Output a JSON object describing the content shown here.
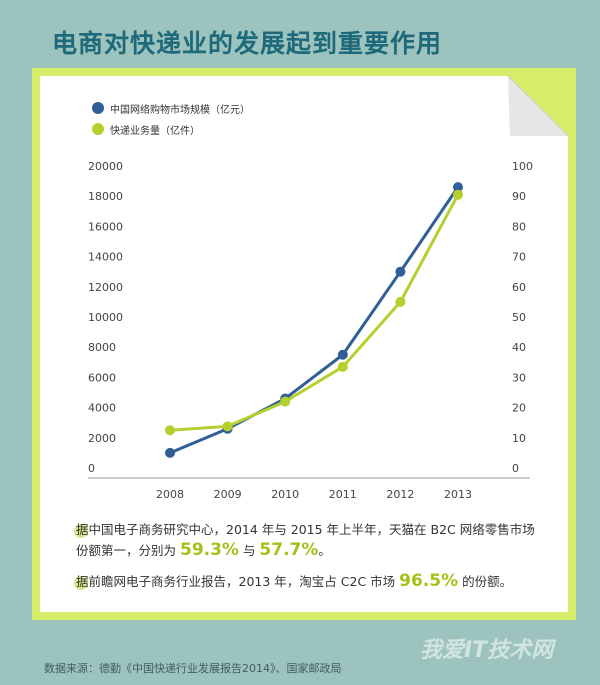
{
  "title": "电商对快递业的发展起到重要作用",
  "chart_data": {
    "type": "line",
    "x": [
      "2008",
      "2009",
      "2010",
      "2011",
      "2012",
      "2013"
    ],
    "series": [
      {
        "name": "中国网络购物市场规模（亿元）",
        "axis": "left",
        "color": "#2f5f96",
        "values": [
          1000,
          2600,
          4600,
          7500,
          13000,
          18600
        ]
      },
      {
        "name": "快递业务量（亿件）",
        "axis": "right",
        "color": "#b5cf2f",
        "values": [
          12.5,
          13.8,
          22.0,
          33.5,
          55.0,
          90.5
        ]
      }
    ],
    "left_axis": {
      "ylim": [
        0,
        20000
      ],
      "ticks": [
        "0",
        "2000",
        "4000",
        "6000",
        "8000",
        "10000",
        "12000",
        "14000",
        "16000",
        "18000",
        "20000"
      ]
    },
    "right_axis": {
      "ylim": [
        0,
        100
      ],
      "ticks": [
        "0",
        "10",
        "20",
        "30",
        "40",
        "50",
        "60",
        "70",
        "80",
        "90",
        "100"
      ]
    },
    "grid": false,
    "legend": "top-left"
  },
  "notes": [
    {
      "pre": "据中国电子商务研究中心，2014 年与 2015 年上半年，天猫在 B2C 网络零售市场份额第一，分别为 ",
      "h1": "59.3%",
      "mid": " 与 ",
      "h2": "57.7%",
      "post": "。"
    },
    {
      "pre": "据前瞻网电子商务行业报告，2013 年，淘宝占 C2C 市场 ",
      "h1": "96.5%",
      "post": " 的份额。"
    }
  ],
  "source": "数据来源：德勤《中国快递行业发展报告2014》、国家邮政局",
  "watermark": "我爱IT技术网"
}
